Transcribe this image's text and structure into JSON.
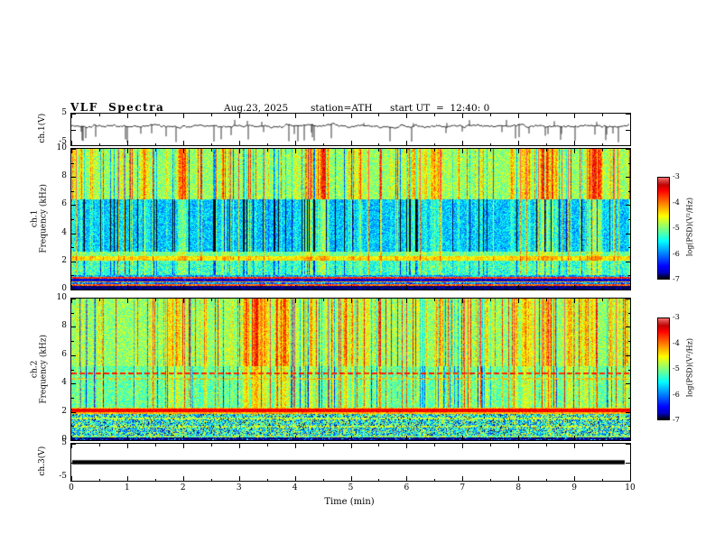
{
  "header": {
    "title": "VLF  Spectra",
    "date": "Aug.23, 2025",
    "station": "station=ATH",
    "start_label": "start UT  =  12:40: 0"
  },
  "xaxis": {
    "label": "Time  (min)",
    "ticks": [
      "0",
      "1",
      "2",
      "3",
      "4",
      "5",
      "6",
      "7",
      "8",
      "9",
      "10"
    ],
    "range": [
      0,
      10
    ]
  },
  "chart_data": [
    {
      "id": "ch1-waveform",
      "type": "line",
      "ylabel": "ch.1(V)",
      "ylim": [
        -5,
        5
      ],
      "yticks": [
        "5",
        "-5"
      ],
      "xlim": [
        0,
        10
      ],
      "summary": "Noisy broadband voltage trace fluctuating around +1 V with frequent impulsive spikes down to about -4 V and up to about +3 V"
    },
    {
      "id": "ch1-spectrogram",
      "type": "heatmap",
      "ylabel_lines": [
        "ch.1",
        "Frequency (kHz)"
      ],
      "ylim": [
        0,
        10
      ],
      "yticks": [
        "10",
        "8",
        "6",
        "4",
        "2",
        "0"
      ],
      "xlim": [
        0,
        10
      ],
      "colorbar": {
        "label": "log(PSD)(V²/Hz)",
        "ticks": [
          "-3",
          "-4",
          "-5",
          "-6",
          "-7"
        ],
        "range": [
          -7,
          -3
        ]
      },
      "features": [
        "intense red/yellow vertical sferic streaks above ~6.5 kHz on green background",
        "quieter blue band between ~3 and 6 kHz crossed by vertical streaks",
        "yellow-green horizontal band near 2.2 kHz",
        "alternating red/yellow and black horizontal bands below 1 kHz",
        "black band at the bottom edge near 0 kHz"
      ]
    },
    {
      "id": "ch2-spectrogram",
      "type": "heatmap",
      "ylabel_lines": [
        "ch.2",
        "Frequency (kHz)"
      ],
      "ylim": [
        0,
        10
      ],
      "yticks": [
        "10",
        "8",
        "6",
        "4",
        "2",
        "0"
      ],
      "xlim": [
        0,
        10
      ],
      "colorbar": {
        "label": "log(PSD)(V²/Hz)",
        "ticks": [
          "-3",
          "-4",
          "-5",
          "-6",
          "-7"
        ],
        "range": [
          -7,
          -3
        ]
      },
      "features": [
        "green background with red/yellow vertical sferic streaks above ~5 kHz",
        "dotted red horizontal line near 4.7 kHz",
        "strong continuous red horizontal line near 2 kHz",
        "dense blue/cyan speckled band below ~1.8 kHz",
        "dark band near 0 kHz"
      ]
    },
    {
      "id": "ch3-waveform",
      "type": "line",
      "ylabel": "ch.3(V)",
      "ylim": [
        -5,
        5
      ],
      "yticks": [
        "5",
        "-5"
      ],
      "xlim": [
        0,
        10
      ],
      "constant_value": 0,
      "summary": "Flat thick trace at 0 V across the full record (channel inactive)"
    }
  ]
}
